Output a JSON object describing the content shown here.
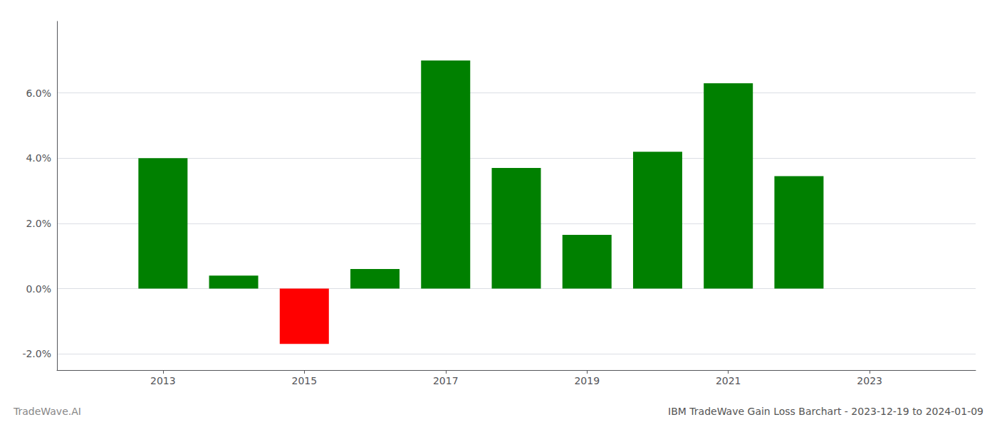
{
  "chart_data": {
    "type": "bar",
    "title": "IBM TradeWave Gain Loss Barchart - 2023-12-19 to 2024-01-09",
    "annotations": [
      "TradeWave.AI"
    ],
    "x": [
      2013,
      2014,
      2015,
      2016,
      2017,
      2018,
      2019,
      2020,
      2021,
      2022
    ],
    "values": [
      0.04,
      0.004,
      -0.017,
      0.006,
      0.07,
      0.037,
      0.0165,
      0.042,
      0.063,
      0.0345
    ],
    "colors": [
      "#008000",
      "#008000",
      "#ff0000",
      "#008000",
      "#008000",
      "#008000",
      "#008000",
      "#008000",
      "#008000",
      "#008000"
    ],
    "xlim": [
      2011.5,
      2024.5
    ],
    "xticks": [
      2013,
      2015,
      2017,
      2019,
      2021,
      2023
    ],
    "ylim": [
      -0.025,
      0.082
    ],
    "yticks": [
      {
        "value": -0.02,
        "label": "-2.0%"
      },
      {
        "value": 0.0,
        "label": "0.0%"
      },
      {
        "value": 0.02,
        "label": "2.0%"
      },
      {
        "value": 0.04,
        "label": "4.0%"
      },
      {
        "value": 0.06,
        "label": "6.0%"
      }
    ],
    "grid": true
  }
}
